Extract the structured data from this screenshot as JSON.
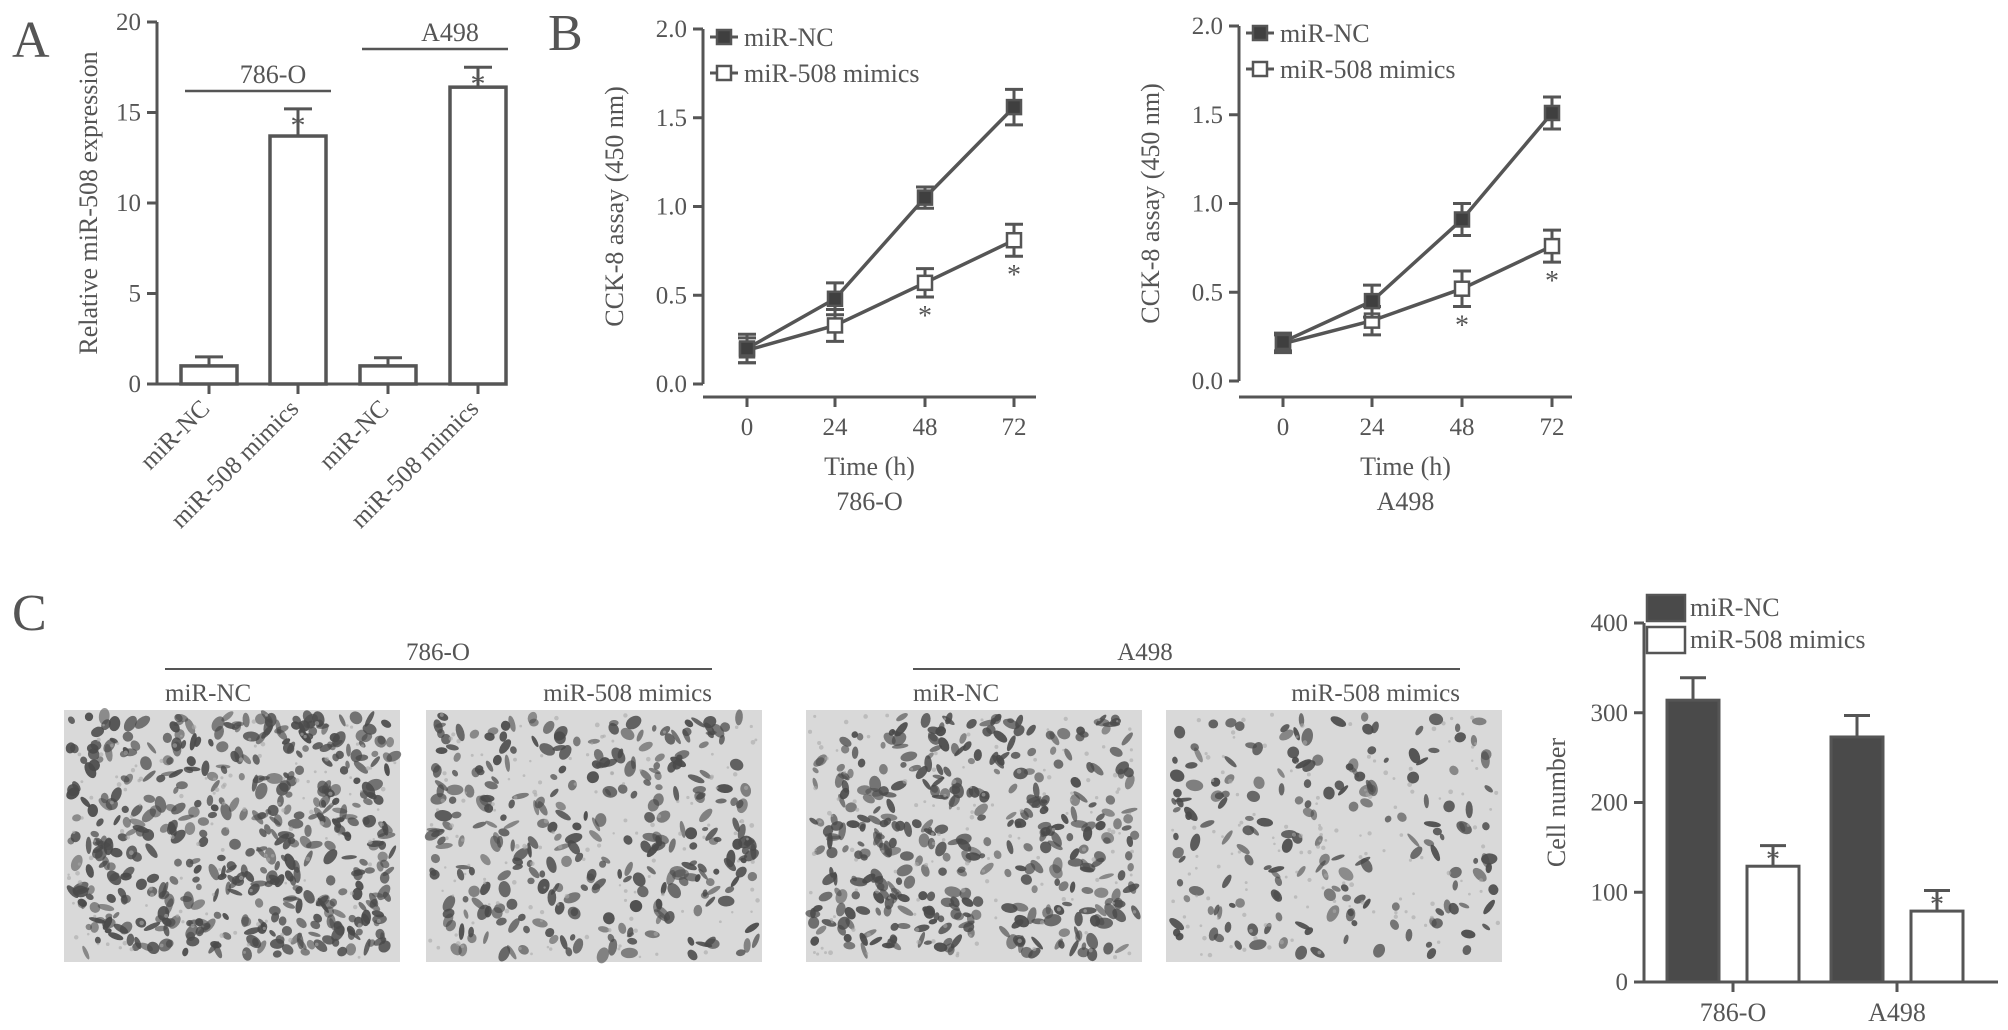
{
  "panels": {
    "A": {
      "letter": "A"
    },
    "B": {
      "letter": "B"
    },
    "C": {
      "letter": "C"
    }
  },
  "colors": {
    "ink": "#555555",
    "dark_bar": "#4a4a4a",
    "cell_stain": "#4a4a4a",
    "membrane": "#d9d9d9"
  },
  "micrographs": {
    "group_786O": {
      "title": "786-O",
      "left_label": "miR-NC",
      "right_label": "miR-508 mimics"
    },
    "group_A498": {
      "title": "A498",
      "left_label": "miR-NC",
      "right_label": "miR-508 mimics"
    },
    "density": [
      0.95,
      0.6,
      0.75,
      0.35
    ]
  },
  "chart_data": [
    {
      "id": "A",
      "type": "bar",
      "categories": [
        "miR-NC",
        "miR-508 mimics",
        "miR-NC",
        "miR-508 mimics"
      ],
      "values": [
        1.0,
        13.7,
        1.0,
        16.4
      ],
      "errors": [
        0.5,
        1.5,
        0.45,
        1.1
      ],
      "significance": [
        "",
        "*",
        "",
        "*"
      ],
      "groups": [
        {
          "label": "786-O",
          "indices": [
            0,
            1
          ]
        },
        {
          "label": "A498",
          "indices": [
            2,
            3
          ]
        }
      ],
      "ylabel": "Relative miR-508 expression",
      "ylim": [
        0,
        20
      ],
      "yticks": [
        0,
        5,
        10,
        15,
        20
      ]
    },
    {
      "id": "B1",
      "type": "line",
      "x": [
        0,
        24,
        48,
        72
      ],
      "series": [
        {
          "name": "miR-NC",
          "values": [
            0.2,
            0.48,
            1.05,
            1.56
          ],
          "errors": [
            0.08,
            0.09,
            0.06,
            0.1
          ],
          "marker": "filled-square",
          "significance": [
            "",
            "",
            "",
            ""
          ]
        },
        {
          "name": "miR-508 mimics",
          "values": [
            0.19,
            0.33,
            0.57,
            0.81
          ],
          "errors": [
            0.07,
            0.09,
            0.08,
            0.09
          ],
          "marker": "open-square",
          "significance": [
            "",
            "",
            "*",
            "*"
          ]
        }
      ],
      "xlabel": "Time (h)",
      "caption": "786-O",
      "ylabel": "CCK-8 assay (450 nm)",
      "ylim": [
        0,
        2.0
      ],
      "yticks": [
        "0.0",
        "0.5",
        "1.0",
        "1.5",
        "2.0"
      ],
      "xticks": [
        "0",
        "24",
        "48",
        "72"
      ],
      "legend": "top-left"
    },
    {
      "id": "B2",
      "type": "line",
      "x": [
        0,
        24,
        48,
        72
      ],
      "series": [
        {
          "name": "miR-NC",
          "values": [
            0.22,
            0.45,
            0.91,
            1.51
          ],
          "errors": [
            0.05,
            0.09,
            0.09,
            0.09
          ],
          "marker": "filled-square",
          "significance": [
            "",
            "",
            "",
            ""
          ]
        },
        {
          "name": "miR-508 mimics",
          "values": [
            0.21,
            0.34,
            0.52,
            0.76
          ],
          "errors": [
            0.05,
            0.08,
            0.1,
            0.09
          ],
          "marker": "open-square",
          "significance": [
            "",
            "",
            "*",
            "*"
          ]
        }
      ],
      "xlabel": "Time (h)",
      "caption": "A498",
      "ylabel": "CCK-8 assay (450 nm)",
      "ylim": [
        0,
        2.0
      ],
      "yticks": [
        "0.0",
        "0.5",
        "1.0",
        "1.5",
        "2.0"
      ],
      "xticks": [
        "0",
        "24",
        "48",
        "72"
      ],
      "legend": "top-left"
    },
    {
      "id": "C",
      "type": "bar",
      "categories": [
        "786-O",
        "A498"
      ],
      "series": [
        {
          "name": "miR-NC",
          "values": [
            314,
            273
          ],
          "errors": [
            25,
            24
          ],
          "fill": "dark",
          "significance": [
            "",
            ""
          ]
        },
        {
          "name": "miR-508 mimics",
          "values": [
            129,
            79
          ],
          "errors": [
            23,
            23
          ],
          "fill": "white",
          "significance": [
            "*",
            "*"
          ]
        }
      ],
      "ylabel": "Cell number",
      "ylim": [
        0,
        400
      ],
      "yticks": [
        0,
        100,
        200,
        300,
        400
      ],
      "legend": "top-left"
    }
  ]
}
